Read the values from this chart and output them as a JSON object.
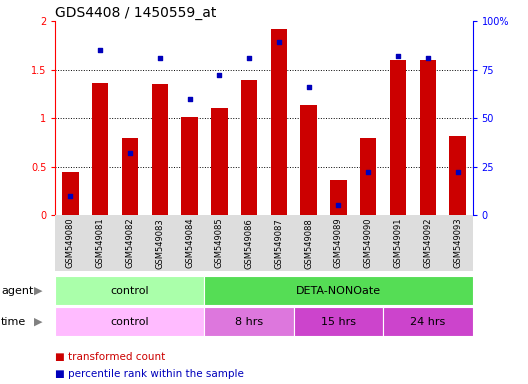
{
  "title": "GDS4408 / 1450559_at",
  "samples": [
    "GSM549080",
    "GSM549081",
    "GSM549082",
    "GSM549083",
    "GSM549084",
    "GSM549085",
    "GSM549086",
    "GSM549087",
    "GSM549088",
    "GSM549089",
    "GSM549090",
    "GSM549091",
    "GSM549092",
    "GSM549093"
  ],
  "bar_values": [
    0.44,
    1.36,
    0.79,
    1.35,
    1.01,
    1.1,
    1.39,
    1.92,
    1.14,
    0.36,
    0.79,
    1.6,
    1.6,
    0.82
  ],
  "dot_values_pct": [
    10,
    85,
    32,
    81,
    60,
    72,
    81,
    89,
    66,
    5,
    22,
    82,
    81,
    22
  ],
  "bar_color": "#CC0000",
  "dot_color": "#0000BB",
  "ylim_left": [
    0,
    2
  ],
  "ylim_right": [
    0,
    100
  ],
  "yticks_left": [
    0,
    0.5,
    1.0,
    1.5,
    2.0
  ],
  "ytick_labels_left": [
    "0",
    "0.5",
    "1",
    "1.5",
    "2"
  ],
  "yticks_right": [
    0,
    25,
    50,
    75,
    100
  ],
  "ytick_labels_right": [
    "0",
    "25",
    "50",
    "75",
    "100%"
  ],
  "agent_groups": [
    {
      "label": "control",
      "start": 0,
      "end": 4,
      "color": "#AAFFAA"
    },
    {
      "label": "DETA-NONOate",
      "start": 5,
      "end": 13,
      "color": "#55DD55"
    }
  ],
  "time_colors": [
    "#FFBBFF",
    "#DD77DD",
    "#CC44CC",
    "#CC44CC"
  ],
  "time_groups": [
    {
      "label": "control",
      "start": 0,
      "end": 4
    },
    {
      "label": "8 hrs",
      "start": 5,
      "end": 7
    },
    {
      "label": "15 hrs",
      "start": 8,
      "end": 10
    },
    {
      "label": "24 hrs",
      "start": 11,
      "end": 13
    }
  ],
  "bar_width": 0.55,
  "title_fontsize": 10,
  "tick_fontsize": 7,
  "label_fontsize": 7
}
